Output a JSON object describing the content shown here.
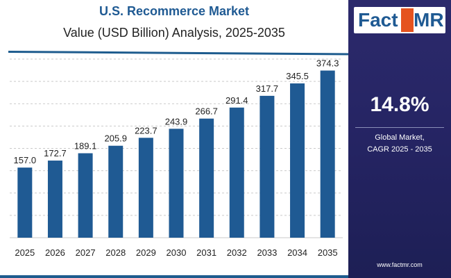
{
  "chart_data": {
    "type": "bar",
    "title": "U.S. Recommerce Market",
    "subtitle": "Value (USD Billion) Analysis, 2025-2035",
    "categories": [
      "2025",
      "2026",
      "2027",
      "2028",
      "2029",
      "2030",
      "2031",
      "2032",
      "2033",
      "2034",
      "2035"
    ],
    "values": [
      157.0,
      172.7,
      189.1,
      205.9,
      223.7,
      243.9,
      266.7,
      291.4,
      317.7,
      345.5,
      374.3
    ],
    "data_labels": [
      "157.0",
      "172.7",
      "189.1",
      "205.9",
      "223.7",
      "243.9",
      "266.7",
      "291.4",
      "317.7",
      "345.5",
      "374.3"
    ],
    "xlabel": "",
    "ylabel": "",
    "ylim": [
      0,
      400
    ],
    "grid": "horizontal dashed",
    "legend": "none",
    "bar_color": "#1f5a93"
  },
  "sidebar": {
    "logo_fact": "Fact",
    "logo_dot": ".",
    "logo_mr": "MR",
    "cagr_value": "14.8%",
    "cagr_label_line1": "Global Market,",
    "cagr_label_line2": "CAGR 2025 - 2035",
    "website": "www.factmr.com",
    "background_color": "#252463",
    "accent_color": "#e5531f"
  }
}
